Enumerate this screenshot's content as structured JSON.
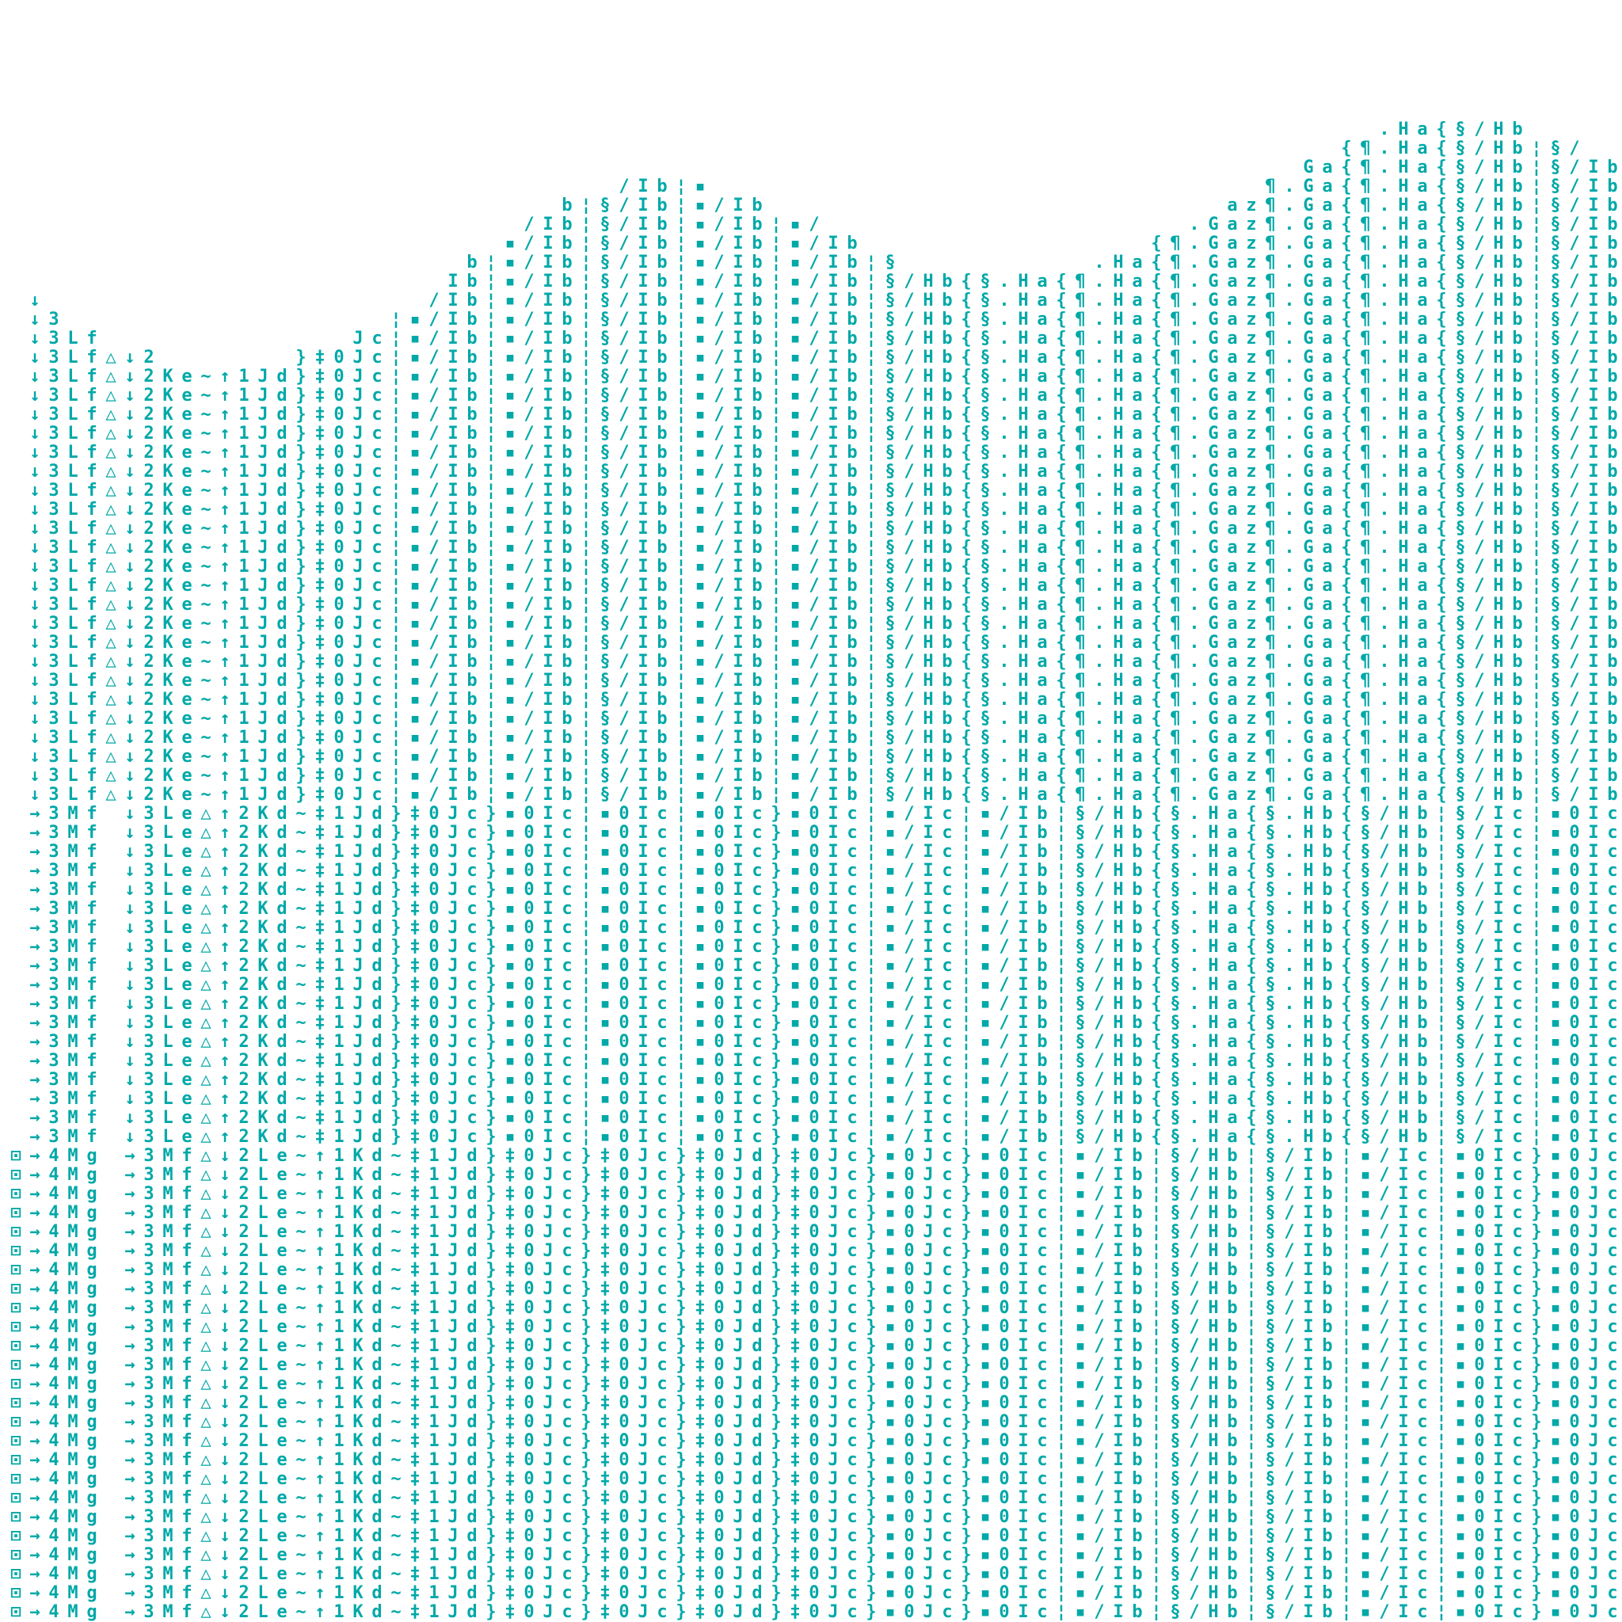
{
  "glyph_color": "#00a8a8",
  "columns": [
    [
      "",
      "",
      "⊡"
    ],
    [
      "↓",
      "→",
      "→"
    ],
    [
      "3",
      "3",
      "4"
    ],
    [
      "L",
      "M",
      "M"
    ],
    [
      "f",
      "f",
      "g"
    ],
    [
      "△",
      "",
      ""
    ],
    [
      "↓",
      "↓",
      "→"
    ],
    [
      "2",
      "3",
      "3"
    ],
    [
      "K",
      "L",
      "M"
    ],
    [
      "e",
      "e",
      "f"
    ],
    [
      "~",
      "△",
      "△"
    ],
    [
      "↑",
      "↑",
      "↓"
    ],
    [
      "1",
      "2",
      "2"
    ],
    [
      "J",
      "K",
      "L"
    ],
    [
      "d",
      "d",
      "e"
    ],
    [
      "}",
      "~",
      "~"
    ],
    [
      "‡",
      "‡",
      "↑"
    ],
    [
      "0",
      "1",
      "1"
    ],
    [
      "J",
      "J",
      "K"
    ],
    [
      "c",
      "d",
      "d"
    ],
    [
      "¦",
      "}",
      "~"
    ],
    [
      "▪",
      "‡",
      "‡"
    ],
    [
      "/",
      "0",
      "1"
    ],
    [
      "I",
      "J",
      "J"
    ],
    [
      "b",
      "c",
      "d"
    ],
    [
      "¦",
      "}",
      "}"
    ],
    [
      "▪",
      "▪",
      "‡"
    ],
    [
      "/",
      "0",
      "0"
    ],
    [
      "I",
      "I",
      "J"
    ],
    [
      "b",
      "c",
      "c"
    ],
    [
      "¦",
      "¦",
      "}"
    ],
    [
      "§",
      "▪",
      "‡"
    ],
    [
      "/",
      "0",
      "0"
    ],
    [
      "I",
      "I",
      "J"
    ],
    [
      "b",
      "c",
      "c"
    ],
    [
      "¦",
      "¦",
      "}"
    ],
    [
      "▪",
      "▪",
      "‡"
    ],
    [
      "/",
      "0",
      "0"
    ],
    [
      "I",
      "I",
      "J"
    ],
    [
      "b",
      "c",
      "d"
    ],
    [
      "¦",
      "}",
      "}"
    ],
    [
      "▪",
      "▪",
      "‡"
    ],
    [
      "/",
      "0",
      "0"
    ],
    [
      "I",
      "I",
      "J"
    ],
    [
      "b",
      "c",
      "c"
    ],
    [
      "¦",
      "¦",
      "}"
    ],
    [
      "§",
      "▪",
      "▪"
    ],
    [
      "/",
      "/",
      "0"
    ],
    [
      "H",
      "I",
      "J"
    ],
    [
      "b",
      "c",
      "c"
    ],
    [
      "{",
      "¦",
      "}"
    ],
    [
      "§",
      "▪",
      "▪"
    ],
    [
      ".",
      "/",
      "0"
    ],
    [
      "H",
      "I",
      "I"
    ],
    [
      "a",
      "b",
      "c"
    ],
    [
      "{",
      "¦",
      "¦"
    ],
    [
      "¶",
      "§",
      "▪"
    ],
    [
      ".",
      "/",
      "/"
    ],
    [
      "H",
      "H",
      "I"
    ],
    [
      "a",
      "b",
      "b"
    ],
    [
      "{",
      "{",
      "¦"
    ],
    [
      "¶",
      "§",
      "§"
    ],
    [
      ".",
      ".",
      "/"
    ],
    [
      "G",
      "H",
      "H"
    ],
    [
      "a",
      "a",
      "b"
    ],
    [
      "z",
      "{",
      "¦"
    ],
    [
      "¶",
      "§",
      "§"
    ],
    [
      ".",
      ".",
      "/"
    ],
    [
      "G",
      "H",
      "I"
    ],
    [
      "a",
      "b",
      "b"
    ],
    [
      "{",
      "{",
      "¦"
    ],
    [
      "¶",
      "§",
      "▪"
    ],
    [
      ".",
      "/",
      "/"
    ],
    [
      "H",
      "H",
      "I"
    ],
    [
      "a",
      "b",
      "c"
    ],
    [
      "{",
      "¦",
      "¦"
    ],
    [
      "§",
      "§",
      "▪"
    ],
    [
      "/",
      "/",
      "0"
    ],
    [
      "H",
      "I",
      "I"
    ],
    [
      "b",
      "c",
      "c"
    ],
    [
      "¦",
      "¦",
      "}"
    ],
    [
      "§",
      "▪",
      "▪"
    ],
    [
      "/",
      "0",
      "0"
    ],
    [
      "I",
      "I",
      "J"
    ],
    [
      "b",
      "c",
      "c"
    ]
  ]
}
